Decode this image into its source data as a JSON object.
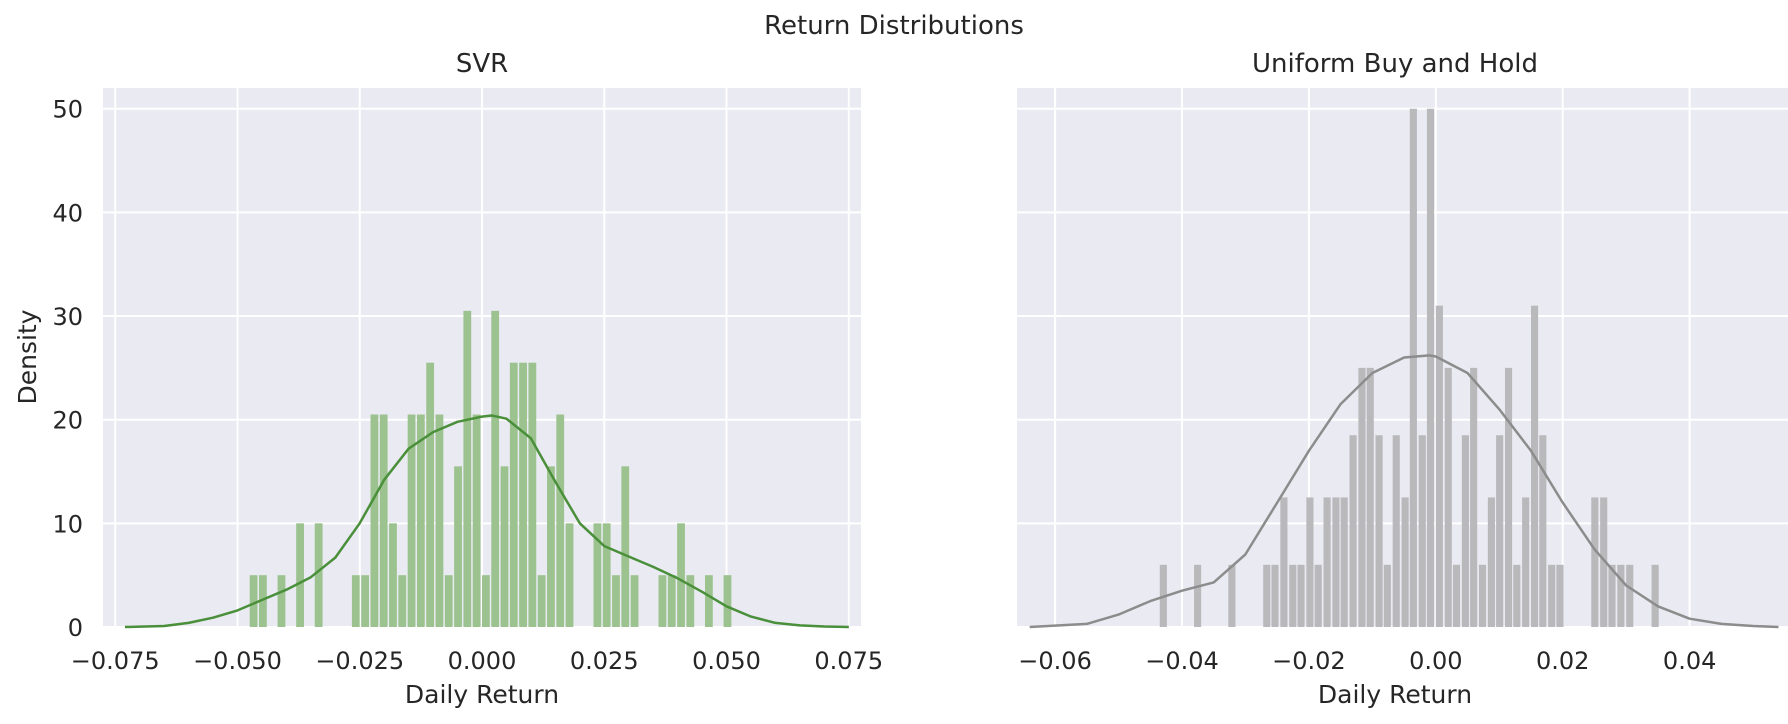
{
  "figure_title": "Return Distributions",
  "chart_data": [
    {
      "type": "histogram",
      "title": "SVR",
      "xlabel": "Daily Return",
      "ylabel": "Density",
      "xlim": [
        -0.0775,
        0.0775
      ],
      "ylim": [
        0,
        52
      ],
      "xticks": [
        -0.075,
        -0.05,
        -0.025,
        0.0,
        0.025,
        0.05,
        0.075
      ],
      "xtick_labels": [
        "−0.075",
        "−0.050",
        "−0.025",
        "0.000",
        "0.025",
        "0.050",
        "0.075"
      ],
      "yticks": [
        0,
        10,
        20,
        30,
        40,
        50
      ],
      "ytick_labels": [
        "0",
        "10",
        "20",
        "30",
        "40",
        "50"
      ],
      "color": "#4a8f3a",
      "bar_color": "#9cc38f",
      "bin_width": 0.0019,
      "bins": [
        [
          -0.0475,
          5
        ],
        [
          -0.0456,
          5
        ],
        [
          -0.0418,
          5
        ],
        [
          -0.038,
          10
        ],
        [
          -0.0342,
          10
        ],
        [
          -0.0266,
          5
        ],
        [
          -0.0247,
          5
        ],
        [
          -0.0228,
          20.5
        ],
        [
          -0.0209,
          20.5
        ],
        [
          -0.019,
          10
        ],
        [
          -0.0171,
          5
        ],
        [
          -0.0152,
          20.5
        ],
        [
          -0.0133,
          20.5
        ],
        [
          -0.0114,
          25.5
        ],
        [
          -0.0095,
          20.5
        ],
        [
          -0.0076,
          5
        ],
        [
          -0.0057,
          15.5
        ],
        [
          -0.0038,
          30.5
        ],
        [
          -0.0019,
          20.5
        ],
        [
          0.0,
          5
        ],
        [
          0.0019,
          30.5
        ],
        [
          0.0038,
          15.5
        ],
        [
          0.0057,
          25.5
        ],
        [
          0.0076,
          25.5
        ],
        [
          0.0095,
          25.5
        ],
        [
          0.0114,
          5
        ],
        [
          0.0133,
          15.5
        ],
        [
          0.0152,
          20.5
        ],
        [
          0.0171,
          10
        ],
        [
          0.0228,
          10
        ],
        [
          0.0247,
          10
        ],
        [
          0.0266,
          5
        ],
        [
          0.0285,
          15.5
        ],
        [
          0.0304,
          5
        ],
        [
          0.0361,
          5
        ],
        [
          0.038,
          5
        ],
        [
          0.0399,
          10
        ],
        [
          0.0418,
          5
        ],
        [
          0.0456,
          5
        ],
        [
          0.0494,
          5
        ]
      ],
      "kde_x": [
        -0.073,
        -0.065,
        -0.06,
        -0.055,
        -0.05,
        -0.045,
        -0.04,
        -0.035,
        -0.03,
        -0.025,
        -0.02,
        -0.015,
        -0.01,
        -0.005,
        0.0,
        0.002,
        0.005,
        0.01,
        0.015,
        0.02,
        0.025,
        0.03,
        0.035,
        0.04,
        0.045,
        0.05,
        0.055,
        0.06,
        0.065,
        0.07,
        0.075
      ],
      "kde_y": [
        0.0,
        0.1,
        0.4,
        0.9,
        1.6,
        2.6,
        3.6,
        4.8,
        6.7,
        10.0,
        14.2,
        17.2,
        18.8,
        19.8,
        20.3,
        20.4,
        20.1,
        18.2,
        14.0,
        10.0,
        7.8,
        6.8,
        5.8,
        4.7,
        3.4,
        2.0,
        1.0,
        0.4,
        0.15,
        0.05,
        0.0
      ]
    },
    {
      "type": "histogram",
      "title": "Uniform Buy and Hold",
      "xlabel": "Daily Return",
      "ylabel": "",
      "xlim": [
        -0.066,
        0.0555
      ],
      "ylim": [
        0,
        52
      ],
      "xticks": [
        -0.06,
        -0.04,
        -0.02,
        0.0,
        0.02,
        0.04
      ],
      "xtick_labels": [
        "−0.06",
        "−0.04",
        "−0.02",
        "0.00",
        "0.02",
        "0.04"
      ],
      "yticks": [
        0,
        10,
        20,
        30,
        40,
        50
      ],
      "ytick_labels": [
        "",
        "",
        "",
        "",
        "",
        ""
      ],
      "color": "#8c8c8c",
      "bar_color": "#b9b9bc",
      "bin_width": 0.00136,
      "bins": [
        [
          -0.0435,
          6
        ],
        [
          -0.0381,
          6
        ],
        [
          -0.0327,
          6
        ],
        [
          -0.0272,
          6
        ],
        [
          -0.0259,
          6
        ],
        [
          -0.0245,
          12.5
        ],
        [
          -0.0231,
          6
        ],
        [
          -0.0218,
          6
        ],
        [
          -0.0204,
          12.5
        ],
        [
          -0.0191,
          6
        ],
        [
          -0.0177,
          12.5
        ],
        [
          -0.0163,
          12.5
        ],
        [
          -0.015,
          12.5
        ],
        [
          -0.0136,
          18.5
        ],
        [
          -0.0122,
          25
        ],
        [
          -0.0109,
          25
        ],
        [
          -0.0095,
          18.5
        ],
        [
          -0.0082,
          6
        ],
        [
          -0.0068,
          18.5
        ],
        [
          -0.0054,
          12.5
        ],
        [
          -0.0041,
          50
        ],
        [
          -0.0027,
          18.5
        ],
        [
          -0.0014,
          50
        ],
        [
          0.0,
          31
        ],
        [
          0.0014,
          25
        ],
        [
          0.0027,
          6
        ],
        [
          0.0041,
          18.5
        ],
        [
          0.0054,
          25
        ],
        [
          0.0068,
          6
        ],
        [
          0.0082,
          12.5
        ],
        [
          0.0095,
          18.5
        ],
        [
          0.0109,
          25
        ],
        [
          0.0122,
          6
        ],
        [
          0.0136,
          12.5
        ],
        [
          0.015,
          31
        ],
        [
          0.0163,
          18.5
        ],
        [
          0.0177,
          6
        ],
        [
          0.019,
          6
        ],
        [
          0.0245,
          12.5
        ],
        [
          0.0259,
          12.5
        ],
        [
          0.0272,
          6
        ],
        [
          0.0286,
          6
        ],
        [
          0.03,
          6
        ],
        [
          0.034,
          6
        ]
      ],
      "kde_x": [
        -0.064,
        -0.055,
        -0.05,
        -0.045,
        -0.04,
        -0.035,
        -0.03,
        -0.025,
        -0.02,
        -0.015,
        -0.01,
        -0.005,
        -0.001,
        0.0,
        0.005,
        0.01,
        0.015,
        0.02,
        0.025,
        0.03,
        0.035,
        0.04,
        0.045,
        0.05,
        0.054
      ],
      "kde_y": [
        0.0,
        0.3,
        1.2,
        2.5,
        3.5,
        4.3,
        7.0,
        12.0,
        17.0,
        21.5,
        24.5,
        26.0,
        26.2,
        26.1,
        24.5,
        21.0,
        17.0,
        12.0,
        7.5,
        4.0,
        2.0,
        0.8,
        0.3,
        0.1,
        0.0
      ]
    }
  ]
}
